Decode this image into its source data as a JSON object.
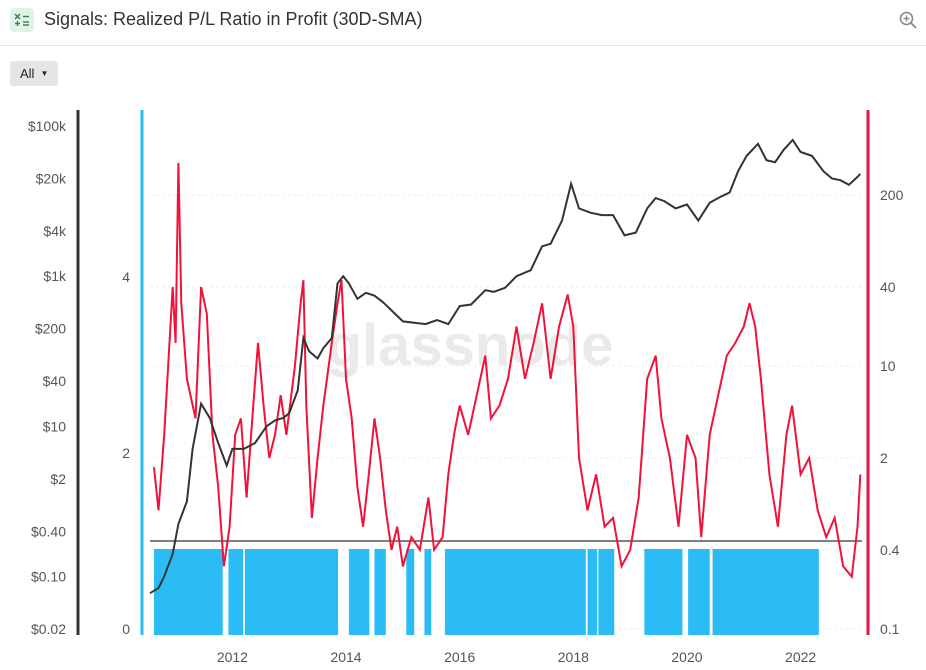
{
  "header": {
    "title": "Signals: Realized P/L Ratio in Profit (30D-SMA)",
    "icon": "signals-grid-icon",
    "zoom_icon": "zoom-in-icon"
  },
  "filter": {
    "label": "All"
  },
  "watermark": "glassnode",
  "colors": {
    "price": "#333333",
    "ratio": "#f0123a",
    "signal": "#2bbcf5",
    "threshold": "#555555",
    "price_axis": "#333333",
    "signal_axis": "#2bbcf5",
    "ratio_axis": "#f0123a"
  },
  "chart_data": {
    "type": "line",
    "x_ticks": [
      "2012",
      "2014",
      "2016",
      "2018",
      "2020",
      "2022"
    ],
    "x_range": [
      2010.55,
      2023.08
    ],
    "price_axis": {
      "scale": "log",
      "ticks": [
        "$100k",
        "$20k",
        "$4k",
        "$1k",
        "$200",
        "$40",
        "$10",
        "$2",
        "$0.40",
        "$0.10",
        "$0.02"
      ],
      "values": [
        100000,
        20000,
        4000,
        1000,
        200,
        40,
        10,
        2,
        0.4,
        0.1,
        0.02
      ]
    },
    "signal_axis": {
      "ticks": [
        "4",
        "2",
        "0"
      ],
      "values": [
        4,
        2,
        0
      ],
      "range": [
        0,
        5.7
      ]
    },
    "ratio_axis": {
      "scale": "log",
      "ticks": [
        "200",
        "40",
        "10",
        "2",
        "0.4",
        "0.1"
      ],
      "values": [
        200,
        40,
        10,
        2,
        0.4,
        0.1
      ]
    },
    "threshold": 1,
    "series": [
      {
        "key": "price",
        "points": [
          [
            2010.55,
            0.06
          ],
          [
            2010.7,
            0.07
          ],
          [
            2010.8,
            0.1
          ],
          [
            2010.95,
            0.2
          ],
          [
            2011.05,
            0.5
          ],
          [
            2011.2,
            1
          ],
          [
            2011.3,
            5
          ],
          [
            2011.45,
            20
          ],
          [
            2011.6,
            13
          ],
          [
            2011.75,
            6
          ],
          [
            2011.9,
            3
          ],
          [
            2012.0,
            5
          ],
          [
            2012.2,
            5
          ],
          [
            2012.4,
            6
          ],
          [
            2012.6,
            10
          ],
          [
            2012.75,
            12
          ],
          [
            2012.9,
            13
          ],
          [
            2013.0,
            15
          ],
          [
            2013.15,
            30
          ],
          [
            2013.25,
            150
          ],
          [
            2013.35,
            100
          ],
          [
            2013.5,
            80
          ],
          [
            2013.6,
            110
          ],
          [
            2013.75,
            150
          ],
          [
            2013.85,
            800
          ],
          [
            2013.95,
            1000
          ],
          [
            2014.05,
            800
          ],
          [
            2014.2,
            500
          ],
          [
            2014.35,
            600
          ],
          [
            2014.5,
            550
          ],
          [
            2014.65,
            450
          ],
          [
            2014.8,
            350
          ],
          [
            2015.0,
            250
          ],
          [
            2015.2,
            240
          ],
          [
            2015.4,
            230
          ],
          [
            2015.6,
            260
          ],
          [
            2015.8,
            230
          ],
          [
            2016.0,
            400
          ],
          [
            2016.2,
            420
          ],
          [
            2016.45,
            650
          ],
          [
            2016.6,
            620
          ],
          [
            2016.8,
            700
          ],
          [
            2017.0,
            1000
          ],
          [
            2017.25,
            1200
          ],
          [
            2017.45,
            2500
          ],
          [
            2017.6,
            2700
          ],
          [
            2017.8,
            5500
          ],
          [
            2017.96,
            17000
          ],
          [
            2018.1,
            8000
          ],
          [
            2018.3,
            7000
          ],
          [
            2018.5,
            6500
          ],
          [
            2018.7,
            6500
          ],
          [
            2018.9,
            3500
          ],
          [
            2019.1,
            3800
          ],
          [
            2019.3,
            8000
          ],
          [
            2019.45,
            11000
          ],
          [
            2019.6,
            10000
          ],
          [
            2019.8,
            8000
          ],
          [
            2020.0,
            9000
          ],
          [
            2020.2,
            5500
          ],
          [
            2020.4,
            9500
          ],
          [
            2020.6,
            11500
          ],
          [
            2020.75,
            13000
          ],
          [
            2020.9,
            25000
          ],
          [
            2021.05,
            40000
          ],
          [
            2021.25,
            58000
          ],
          [
            2021.4,
            35000
          ],
          [
            2021.55,
            33000
          ],
          [
            2021.7,
            48000
          ],
          [
            2021.86,
            65000
          ],
          [
            2022.0,
            45000
          ],
          [
            2022.2,
            40000
          ],
          [
            2022.4,
            25000
          ],
          [
            2022.55,
            20000
          ],
          [
            2022.7,
            19000
          ],
          [
            2022.85,
            16500
          ],
          [
            2023.0,
            21000
          ],
          [
            2023.05,
            23000
          ]
        ]
      },
      {
        "key": "ratio",
        "points": [
          [
            2010.62,
            1.7
          ],
          [
            2010.7,
            0.8
          ],
          [
            2010.8,
            3
          ],
          [
            2010.95,
            40
          ],
          [
            2011.0,
            15
          ],
          [
            2011.05,
            350
          ],
          [
            2011.1,
            30
          ],
          [
            2011.2,
            8
          ],
          [
            2011.35,
            4
          ],
          [
            2011.45,
            40
          ],
          [
            2011.55,
            25
          ],
          [
            2011.65,
            3
          ],
          [
            2011.75,
            1.2
          ],
          [
            2011.85,
            0.3
          ],
          [
            2011.95,
            0.6
          ],
          [
            2012.05,
            3
          ],
          [
            2012.15,
            4
          ],
          [
            2012.25,
            1
          ],
          [
            2012.35,
            4
          ],
          [
            2012.45,
            15
          ],
          [
            2012.55,
            5
          ],
          [
            2012.65,
            2
          ],
          [
            2012.75,
            3
          ],
          [
            2012.85,
            6
          ],
          [
            2012.95,
            3
          ],
          [
            2013.1,
            10
          ],
          [
            2013.2,
            30
          ],
          [
            2013.25,
            45
          ],
          [
            2013.3,
            5
          ],
          [
            2013.4,
            0.7
          ],
          [
            2013.5,
            2
          ],
          [
            2013.6,
            5
          ],
          [
            2013.75,
            15
          ],
          [
            2013.85,
            30
          ],
          [
            2013.92,
            45
          ],
          [
            2014.0,
            8
          ],
          [
            2014.1,
            4
          ],
          [
            2014.2,
            1.2
          ],
          [
            2014.3,
            0.6
          ],
          [
            2014.4,
            1.5
          ],
          [
            2014.5,
            4
          ],
          [
            2014.6,
            2
          ],
          [
            2014.7,
            0.8
          ],
          [
            2014.8,
            0.4
          ],
          [
            2014.9,
            0.6
          ],
          [
            2015.0,
            0.3
          ],
          [
            2015.15,
            0.5
          ],
          [
            2015.3,
            0.4
          ],
          [
            2015.45,
            1
          ],
          [
            2015.55,
            0.4
          ],
          [
            2015.7,
            0.5
          ],
          [
            2015.8,
            1.5
          ],
          [
            2015.9,
            3
          ],
          [
            2016.0,
            5
          ],
          [
            2016.15,
            3
          ],
          [
            2016.3,
            6
          ],
          [
            2016.45,
            12
          ],
          [
            2016.55,
            4
          ],
          [
            2016.7,
            5
          ],
          [
            2016.85,
            8
          ],
          [
            2017.0,
            20
          ],
          [
            2017.15,
            8
          ],
          [
            2017.3,
            15
          ],
          [
            2017.45,
            30
          ],
          [
            2017.6,
            8
          ],
          [
            2017.75,
            20
          ],
          [
            2017.9,
            35
          ],
          [
            2018.0,
            20
          ],
          [
            2018.1,
            2
          ],
          [
            2018.25,
            0.8
          ],
          [
            2018.4,
            1.5
          ],
          [
            2018.55,
            0.6
          ],
          [
            2018.7,
            0.7
          ],
          [
            2018.85,
            0.3
          ],
          [
            2019.0,
            0.4
          ],
          [
            2019.15,
            1
          ],
          [
            2019.3,
            8
          ],
          [
            2019.45,
            12
          ],
          [
            2019.55,
            4
          ],
          [
            2019.7,
            2
          ],
          [
            2019.85,
            0.6
          ],
          [
            2020.0,
            3
          ],
          [
            2020.15,
            2
          ],
          [
            2020.25,
            0.5
          ],
          [
            2020.4,
            3
          ],
          [
            2020.55,
            6
          ],
          [
            2020.7,
            12
          ],
          [
            2020.85,
            15
          ],
          [
            2021.0,
            20
          ],
          [
            2021.1,
            30
          ],
          [
            2021.2,
            20
          ],
          [
            2021.3,
            8
          ],
          [
            2021.45,
            1.5
          ],
          [
            2021.6,
            0.6
          ],
          [
            2021.75,
            3
          ],
          [
            2021.85,
            5
          ],
          [
            2022.0,
            1.5
          ],
          [
            2022.15,
            2
          ],
          [
            2022.3,
            0.8
          ],
          [
            2022.45,
            0.5
          ],
          [
            2022.6,
            0.7
          ],
          [
            2022.75,
            0.3
          ],
          [
            2022.9,
            0.25
          ],
          [
            2023.0,
            0.6
          ],
          [
            2023.05,
            1.5
          ]
        ]
      }
    ],
    "signal_periods": [
      [
        2010.62,
        2011.83
      ],
      [
        2011.93,
        2012.19
      ],
      [
        2012.22,
        2013.86
      ],
      [
        2014.05,
        2014.41
      ],
      [
        2014.5,
        2014.7
      ],
      [
        2015.06,
        2015.2
      ],
      [
        2015.38,
        2015.5
      ],
      [
        2015.74,
        2018.22
      ],
      [
        2018.25,
        2018.42
      ],
      [
        2018.44,
        2018.72
      ],
      [
        2019.25,
        2019.92
      ],
      [
        2020.02,
        2020.4
      ],
      [
        2020.45,
        2022.32
      ]
    ]
  }
}
